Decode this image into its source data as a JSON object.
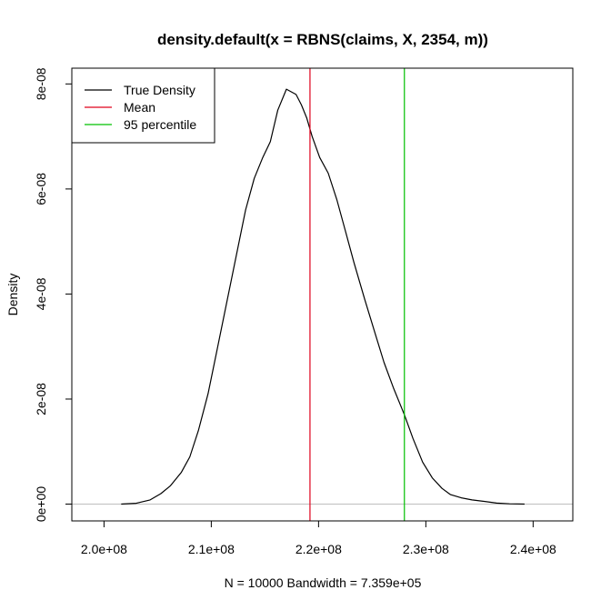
{
  "chart_data": {
    "type": "line",
    "title": "density.default(x = RBNS(claims, X, 2354, m))",
    "xlabel": "N = 10000   Bandwidth = 7.359e+05",
    "ylabel": "Density",
    "xlim": [
      197000000,
      243700000
    ],
    "ylim": [
      -3.2e-09,
      8.3e-08
    ],
    "x_ticks": [
      {
        "value": 200000000,
        "label": "2.0e+08"
      },
      {
        "value": 210000000,
        "label": "2.1e+08"
      },
      {
        "value": 220000000,
        "label": "2.2e+08"
      },
      {
        "value": 230000000,
        "label": "2.3e+08"
      },
      {
        "value": 240000000,
        "label": "2.4e+08"
      }
    ],
    "y_ticks": [
      {
        "value": 0,
        "label": "0e+00"
      },
      {
        "value": 2e-08,
        "label": "2e-08"
      },
      {
        "value": 4e-08,
        "label": "4e-08"
      },
      {
        "value": 6e-08,
        "label": "6e-08"
      },
      {
        "value": 8e-08,
        "label": "8e-08"
      }
    ],
    "series": [
      {
        "name": "True Density",
        "color": "#000000",
        "x": [
          201600000,
          203000000,
          204300000,
          205300000,
          206200000,
          207200000,
          208000000,
          208800000,
          209700000,
          210500000,
          211400000,
          212300000,
          213200000,
          214000000,
          214800000,
          215500000,
          216200000,
          217000000,
          217900000,
          218400000,
          218900000,
          219400000,
          220100000,
          220900000,
          221700000,
          222500000,
          223300000,
          224300000,
          225200000,
          226100000,
          227000000,
          228000000,
          228800000,
          229700000,
          230600000,
          231500000,
          232300000,
          233300000,
          234300000,
          235500000,
          236600000,
          237800000,
          239200000
        ],
        "y": [
          0,
          1.5e-10,
          8e-10,
          2e-09,
          3.5e-09,
          6e-09,
          9e-09,
          1.4e-08,
          2.1e-08,
          2.9e-08,
          3.8e-08,
          4.7e-08,
          5.6e-08,
          6.2e-08,
          6.6e-08,
          6.9e-08,
          7.5e-08,
          7.9e-08,
          7.8e-08,
          7.6e-08,
          7.35e-08,
          7e-08,
          6.6e-08,
          6.3e-08,
          5.8e-08,
          5.2e-08,
          4.6e-08,
          3.9e-08,
          3.3e-08,
          2.7e-08,
          2.2e-08,
          1.7e-08,
          1.25e-08,
          8e-09,
          5e-09,
          3e-09,
          1.8e-09,
          1.2e-09,
          8e-10,
          5e-10,
          2e-10,
          5e-11,
          0
        ]
      }
    ],
    "vlines": [
      {
        "name": "Mean",
        "x": 219200000,
        "color": "#e0001b"
      },
      {
        "name": "95 percentile",
        "x": 228000000,
        "color": "#00c000"
      }
    ],
    "hline_zero_color": "#bebebe",
    "legend": {
      "position": "top-left",
      "entries": [
        {
          "label": "True Density",
          "color": "#000000"
        },
        {
          "label": "Mean",
          "color": "#e0001b"
        },
        {
          "label": "95 percentile",
          "color": "#00c000"
        }
      ]
    },
    "grid": false
  }
}
